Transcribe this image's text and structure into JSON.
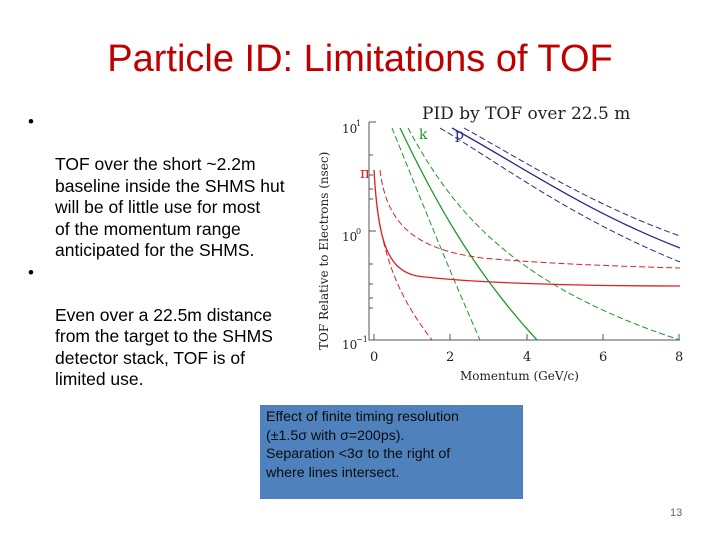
{
  "slide": {
    "title": "Particle ID: Limitations of TOF",
    "bullets": [
      "TOF over the short ~2.2m\nbaseline inside the SHMS hut\nwill be of little use for most\nof the momentum range\nanticipated for the SHMS.",
      "Even over a 22.5m distance\nfrom the target to the SHMS\ndetector stack, TOF is of\nlimited use."
    ],
    "bullet_symbol": "•",
    "note": {
      "lines": [
        "Effect of finite timing resolution",
        "(±1.5σ with σ=200ps).",
        "Separation <3σ to the right of",
        "where lines intersect."
      ],
      "background": "#4f81bd"
    },
    "page_number": "13"
  },
  "plot": {
    "title": "PID  by  TOF  over  22.5  m",
    "xlabel": "Momentum  (GeV/c)",
    "ylabel": "TOF Relative to Electrons (nsec)",
    "x_ticks": [
      "0",
      "2",
      "4",
      "6",
      "8"
    ],
    "y_ticks": {
      "top": "10",
      "mid": "10",
      "bottom": "10"
    },
    "y_exponents": {
      "top": "1",
      "mid": "0",
      "bottom": "−1"
    },
    "curve_labels": {
      "pion": "π",
      "kaon": "k",
      "proton": "p"
    },
    "colors": {
      "pion": "#e02020",
      "kaon": "#1a9a2a",
      "proton": "#2a2a8a",
      "axis": "#333333"
    }
  }
}
